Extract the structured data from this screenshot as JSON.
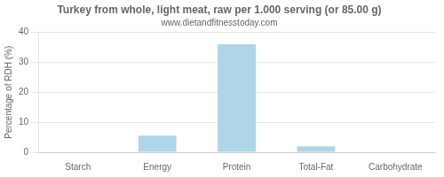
{
  "chart_data": {
    "type": "bar",
    "title": "Turkey from whole, light meat, raw per 1.000 serving (or 85.00 g)",
    "subtitle": "www.dietandfitnesstoday.com",
    "ylabel": "Percentage of RDH (%)",
    "categories": [
      "Starch",
      "Energy",
      "Protein",
      "Total-Fat",
      "Carbohydrate"
    ],
    "values": [
      0,
      5.5,
      36,
      2.0,
      0
    ],
    "color": "#aed6e8",
    "ylim": [
      0,
      40
    ],
    "yticks": [
      0,
      10,
      20,
      30,
      40
    ],
    "grid": true
  }
}
